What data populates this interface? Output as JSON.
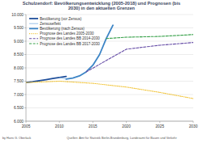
{
  "chart_data": {
    "type": "line",
    "title": "Schulzendorf: Bevölkerungsentwicklung (2005-2018) und Prognosen (bis 2030) in den aktuellen Grenzen",
    "footer_left": "by Hans G. Oberlack",
    "source": "Quellen: Amt für Statistik Berlin-Brandenburg, Landesamt für Bauen und Verkehr",
    "xlim": [
      2005,
      2030
    ],
    "xticks": [
      2005,
      2010,
      2015,
      2020,
      2025,
      2030
    ],
    "ylim": [
      6000,
      10000
    ],
    "yticks": [
      {
        "value": 6000,
        "label": "6.000"
      },
      {
        "value": 6500,
        "label": "6.500"
      },
      {
        "value": 7000,
        "label": "7.000"
      },
      {
        "value": 7500,
        "label": "7.500"
      },
      {
        "value": 8000,
        "label": "8.000"
      },
      {
        "value": 8500,
        "label": "8.500"
      },
      {
        "value": 9000,
        "label": "9.000"
      },
      {
        "value": 9500,
        "label": "9.500"
      },
      {
        "value": 10000,
        "label": "10.000"
      }
    ],
    "grid": true,
    "legend": "upper left",
    "series": [
      {
        "name": "Bevölkerung (vor Zensus)",
        "color": "#1f4e9a",
        "line_style": "solid",
        "x": [
          2005,
          2006,
          2007,
          2008,
          2009,
          2010,
          2011
        ],
        "values": [
          7450,
          7480,
          7520,
          7560,
          7600,
          7640,
          7680
        ]
      },
      {
        "name": "Zensuseffekt",
        "color": "#6fa8dc",
        "line_style": "solid",
        "x": [
          2010,
          2011
        ],
        "values": [
          7640,
          7580
        ]
      },
      {
        "name": "Bevölkerung (nach Zensus)",
        "color": "#3d85c6",
        "line_style": "solid",
        "x": [
          2011,
          2012,
          2013,
          2014,
          2015,
          2016,
          2017,
          2018
        ],
        "values": [
          7580,
          7620,
          7700,
          7850,
          8100,
          8500,
          9100,
          9600
        ]
      },
      {
        "name": "Prognose des Landes 2005-2030",
        "color": "#f1c232",
        "line_style": "dotted",
        "x": [
          2005,
          2010,
          2015,
          2020,
          2025,
          2030
        ],
        "values": [
          7450,
          7500,
          7420,
          7280,
          7080,
          6850
        ]
      },
      {
        "name": "Prognose des Landes BB 2014-2030",
        "color": "#674ea7",
        "line_style": "dashed",
        "x": [
          2014,
          2020,
          2025,
          2030
        ],
        "values": [
          7850,
          8700,
          8850,
          8950
        ]
      },
      {
        "name": "Prognose des Landes BB 2017-2030",
        "color": "#38a14a",
        "line_style": "dashed",
        "x": [
          2017,
          2020,
          2025,
          2030
        ],
        "values": [
          9100,
          9150,
          9180,
          9250
        ]
      }
    ]
  }
}
